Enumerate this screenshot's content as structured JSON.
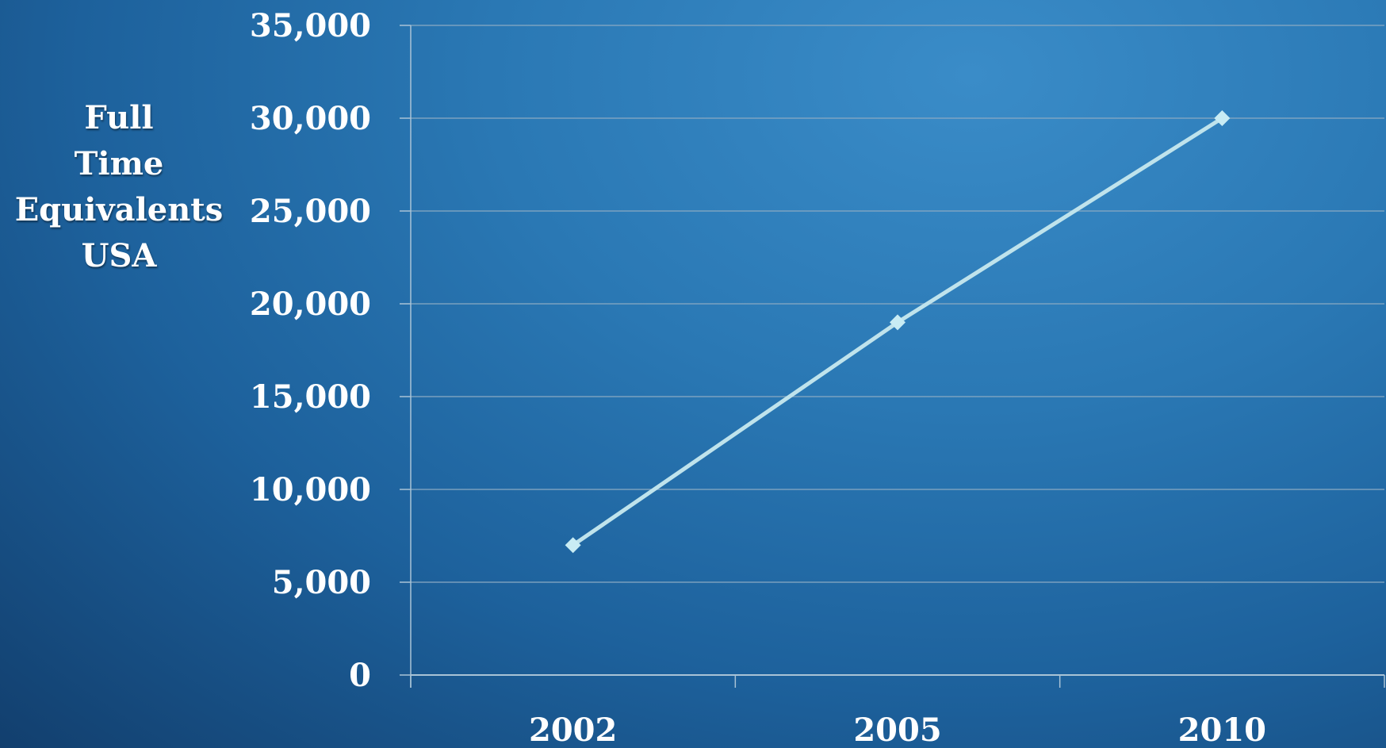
{
  "chart_data": {
    "type": "line",
    "categories": [
      "2002",
      "2005",
      "2010"
    ],
    "series": [
      {
        "values": [
          7000,
          19000,
          30000
        ]
      }
    ],
    "ylabel_lines": [
      "Full",
      "Time",
      "Equivalents",
      "USA"
    ],
    "xlabel": "",
    "title": "",
    "ylim": [
      0,
      35000
    ],
    "yticks": [
      0,
      5000,
      10000,
      15000,
      20000,
      25000,
      30000,
      35000
    ],
    "ytick_labels": [
      "0",
      "5,000",
      "10,000",
      "15,000",
      "20,000",
      "25,000",
      "30,000",
      "35,000"
    ],
    "grid": true,
    "legend": "none",
    "colors": {
      "line": "#bfe3ec",
      "marker": "#c8ecf4",
      "grid": "#8aa9c2",
      "axis": "#a9c3d6",
      "text": "#ffffff"
    }
  }
}
